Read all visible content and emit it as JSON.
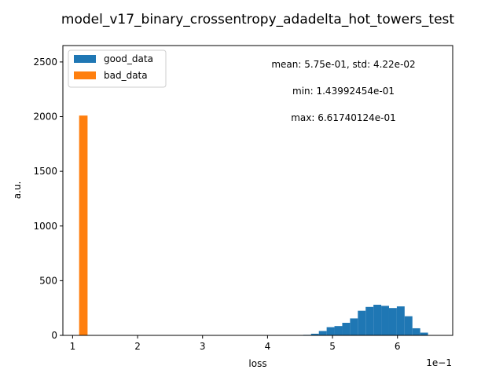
{
  "chart_data": {
    "type": "bar",
    "title": "model_v17_binary_crossentropy_adadelta_hot_towers_test",
    "xlabel": "loss",
    "ylabel": "a.u.",
    "x_offset_label": "1e−1",
    "xlim": [
      0.85,
      6.85
    ],
    "ylim": [
      0,
      2650
    ],
    "x_ticks": [
      1,
      2,
      3,
      4,
      5,
      6
    ],
    "x_tick_labels": [
      "1",
      "2",
      "3",
      "4",
      "5",
      "6"
    ],
    "y_ticks": [
      0,
      500,
      1000,
      1500,
      2000,
      2500
    ],
    "y_tick_labels": [
      "0",
      "500",
      "1000",
      "1500",
      "2000",
      "2500"
    ],
    "grid": false,
    "legend_position": "top-left",
    "annotations": [
      "mean: 5.75e-01, std: 4.22e-02",
      "min: 1.43992454e-01",
      "max: 6.61740124e-01"
    ],
    "series": [
      {
        "name": "good_data",
        "color": "#1f77b4",
        "bins": [
          [
            4.55,
            4.67,
            5
          ],
          [
            4.67,
            4.79,
            15
          ],
          [
            4.79,
            4.91,
            40
          ],
          [
            4.91,
            5.03,
            75
          ],
          [
            5.03,
            5.15,
            85
          ],
          [
            5.15,
            5.27,
            115
          ],
          [
            5.27,
            5.39,
            155
          ],
          [
            5.39,
            5.51,
            225
          ],
          [
            5.51,
            5.63,
            260
          ],
          [
            5.63,
            5.75,
            280
          ],
          [
            5.75,
            5.87,
            270
          ],
          [
            5.87,
            5.99,
            250
          ],
          [
            5.99,
            6.11,
            265
          ],
          [
            6.11,
            6.23,
            175
          ],
          [
            6.23,
            6.35,
            65
          ],
          [
            6.35,
            6.47,
            25
          ]
        ]
      },
      {
        "name": "bad_data",
        "color": "#ff7f0e",
        "bins": [
          [
            1.1,
            1.23,
            2010
          ]
        ]
      }
    ]
  }
}
